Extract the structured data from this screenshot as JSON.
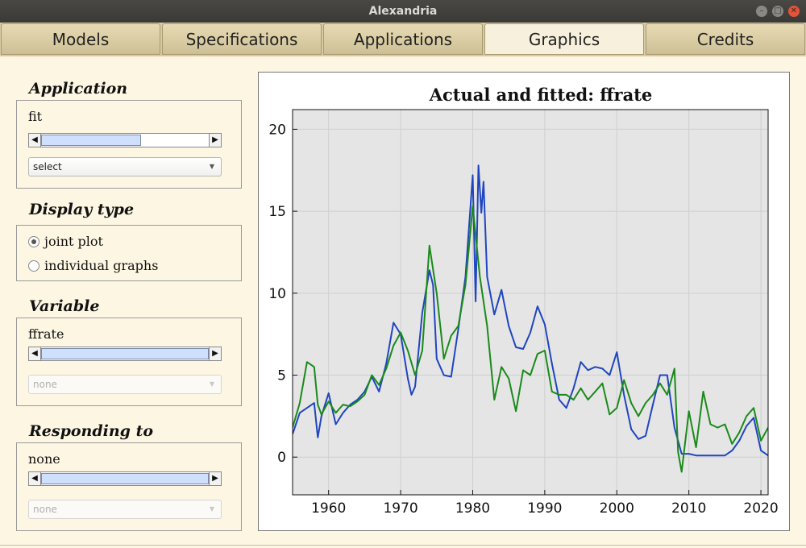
{
  "window": {
    "title": "Alexandria"
  },
  "tabs": [
    {
      "label": "Models"
    },
    {
      "label": "Specifications"
    },
    {
      "label": "Applications"
    },
    {
      "label": "Graphics",
      "active": true
    },
    {
      "label": "Credits"
    }
  ],
  "application": {
    "title": "Application",
    "label": "fit",
    "select": "select"
  },
  "display_type": {
    "title": "Display type",
    "options": [
      {
        "label": "joint plot",
        "selected": true
      },
      {
        "label": "individual graphs",
        "selected": false
      }
    ]
  },
  "variable": {
    "title": "Variable",
    "label": "ffrate",
    "select": "none"
  },
  "responding_to": {
    "title": "Responding to",
    "label": "none",
    "select": "none"
  },
  "chart_data": {
    "type": "line",
    "title": "Actual and fitted: ffrate",
    "xlabel": "",
    "ylabel": "",
    "xlim": [
      1955,
      2021
    ],
    "ylim": [
      -2.3,
      21.2
    ],
    "xticks": [
      1960,
      1970,
      1980,
      1990,
      2000,
      2010,
      2020
    ],
    "yticks": [
      0,
      5,
      10,
      15,
      20
    ],
    "grid": true,
    "background": "#e5e5e5",
    "series": [
      {
        "color": "#1f45c0",
        "points": [
          [
            1955,
            1.4
          ],
          [
            1956,
            2.7
          ],
          [
            1957,
            3.0
          ],
          [
            1958,
            3.3
          ],
          [
            1958.5,
            1.2
          ],
          [
            1959,
            2.5
          ],
          [
            1960,
            3.9
          ],
          [
            1961,
            2.0
          ],
          [
            1962,
            2.7
          ],
          [
            1963,
            3.2
          ],
          [
            1964,
            3.5
          ],
          [
            1965,
            4.0
          ],
          [
            1966,
            4.9
          ],
          [
            1967,
            4.0
          ],
          [
            1968,
            5.7
          ],
          [
            1969,
            8.2
          ],
          [
            1970,
            7.5
          ],
          [
            1971,
            4.8
          ],
          [
            1971.5,
            3.8
          ],
          [
            1972,
            4.3
          ],
          [
            1973,
            8.8
          ],
          [
            1974,
            11.4
          ],
          [
            1974.5,
            10.5
          ],
          [
            1975,
            6.0
          ],
          [
            1976,
            5.0
          ],
          [
            1977,
            4.9
          ],
          [
            1978,
            7.8
          ],
          [
            1979,
            11.0
          ],
          [
            1980,
            17.2
          ],
          [
            1980.4,
            9.5
          ],
          [
            1980.8,
            17.8
          ],
          [
            1981.2,
            14.9
          ],
          [
            1981.5,
            16.8
          ],
          [
            1982,
            11.0
          ],
          [
            1983,
            8.7
          ],
          [
            1984,
            10.2
          ],
          [
            1985,
            8.0
          ],
          [
            1986,
            6.7
          ],
          [
            1987,
            6.6
          ],
          [
            1988,
            7.6
          ],
          [
            1989,
            9.2
          ],
          [
            1990,
            8.1
          ],
          [
            1991,
            5.7
          ],
          [
            1992,
            3.5
          ],
          [
            1993,
            3.0
          ],
          [
            1994,
            4.2
          ],
          [
            1995,
            5.8
          ],
          [
            1996,
            5.3
          ],
          [
            1997,
            5.5
          ],
          [
            1998,
            5.4
          ],
          [
            1999,
            5.0
          ],
          [
            2000,
            6.4
          ],
          [
            2001,
            3.8
          ],
          [
            2002,
            1.7
          ],
          [
            2003,
            1.1
          ],
          [
            2004,
            1.3
          ],
          [
            2005,
            3.2
          ],
          [
            2006,
            5.0
          ],
          [
            2007,
            5.0
          ],
          [
            2008,
            1.8
          ],
          [
            2009,
            0.2
          ],
          [
            2010,
            0.2
          ],
          [
            2011,
            0.1
          ],
          [
            2012,
            0.1
          ],
          [
            2013,
            0.1
          ],
          [
            2014,
            0.1
          ],
          [
            2015,
            0.1
          ],
          [
            2016,
            0.4
          ],
          [
            2017,
            1.0
          ],
          [
            2018,
            1.9
          ],
          [
            2019,
            2.4
          ],
          [
            2020,
            0.4
          ],
          [
            2021,
            0.1
          ]
        ]
      },
      {
        "color": "#1a8a1a",
        "points": [
          [
            1955,
            1.8
          ],
          [
            1956,
            3.3
          ],
          [
            1957,
            5.8
          ],
          [
            1958,
            5.5
          ],
          [
            1958.5,
            3.2
          ],
          [
            1959,
            2.6
          ],
          [
            1960,
            3.4
          ],
          [
            1961,
            2.7
          ],
          [
            1962,
            3.2
          ],
          [
            1963,
            3.1
          ],
          [
            1964,
            3.4
          ],
          [
            1965,
            3.8
          ],
          [
            1966,
            5.0
          ],
          [
            1967,
            4.4
          ],
          [
            1968,
            5.4
          ],
          [
            1969,
            6.8
          ],
          [
            1970,
            7.6
          ],
          [
            1971,
            6.5
          ],
          [
            1972,
            5.0
          ],
          [
            1973,
            6.5
          ],
          [
            1974,
            12.9
          ],
          [
            1975,
            10.0
          ],
          [
            1976,
            6.0
          ],
          [
            1977,
            7.4
          ],
          [
            1978,
            8.0
          ],
          [
            1979,
            10.5
          ],
          [
            1980,
            15.3
          ],
          [
            1981,
            11.0
          ],
          [
            1982,
            8.0
          ],
          [
            1983,
            3.5
          ],
          [
            1984,
            5.5
          ],
          [
            1985,
            4.8
          ],
          [
            1986,
            2.8
          ],
          [
            1987,
            5.3
          ],
          [
            1988,
            5.0
          ],
          [
            1989,
            6.3
          ],
          [
            1990,
            6.5
          ],
          [
            1991,
            4.0
          ],
          [
            1992,
            3.8
          ],
          [
            1993,
            3.8
          ],
          [
            1994,
            3.5
          ],
          [
            1995,
            4.2
          ],
          [
            1996,
            3.5
          ],
          [
            1997,
            4.0
          ],
          [
            1998,
            4.5
          ],
          [
            1999,
            2.6
          ],
          [
            2000,
            3.0
          ],
          [
            2001,
            4.7
          ],
          [
            2002,
            3.3
          ],
          [
            2003,
            2.5
          ],
          [
            2004,
            3.3
          ],
          [
            2005,
            3.8
          ],
          [
            2006,
            4.5
          ],
          [
            2007,
            3.8
          ],
          [
            2008,
            5.4
          ],
          [
            2008.5,
            0.3
          ],
          [
            2009,
            -0.9
          ],
          [
            2010,
            2.8
          ],
          [
            2011,
            0.6
          ],
          [
            2012,
            4.0
          ],
          [
            2013,
            2.0
          ],
          [
            2014,
            1.8
          ],
          [
            2015,
            2.0
          ],
          [
            2016,
            0.8
          ],
          [
            2017,
            1.5
          ],
          [
            2018,
            2.5
          ],
          [
            2019,
            3.0
          ],
          [
            2020,
            1.0
          ],
          [
            2021,
            1.8
          ]
        ]
      }
    ]
  }
}
